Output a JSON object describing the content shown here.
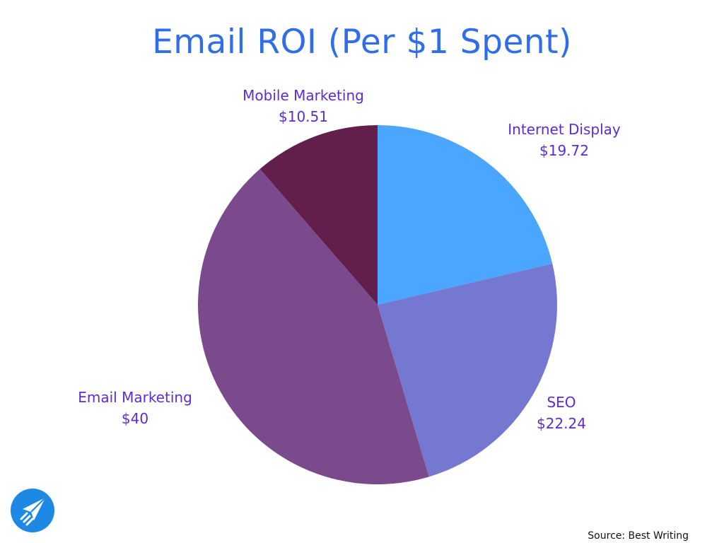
{
  "chart_data": {
    "type": "pie",
    "title": "Email ROI (Per $1 Spent)",
    "categories": [
      "Internet Display",
      "SEO",
      "Email Marketing",
      "Mobile Marketing"
    ],
    "values": [
      19.72,
      22.24,
      40,
      10.51
    ],
    "value_labels": [
      "$19.72",
      "$22.24",
      "$40",
      "$10.51"
    ],
    "colors": [
      "#4aa6ff",
      "#7578d0",
      "#7a4a8c",
      "#621f4c"
    ],
    "start": "12 o'clock",
    "direction": "clockwise",
    "legend": "none",
    "label_color": "#5d2bd6"
  },
  "source": "Source: Best Writing",
  "logo_icon": "paper-plane-icon",
  "title_color": "#2f6ee8"
}
